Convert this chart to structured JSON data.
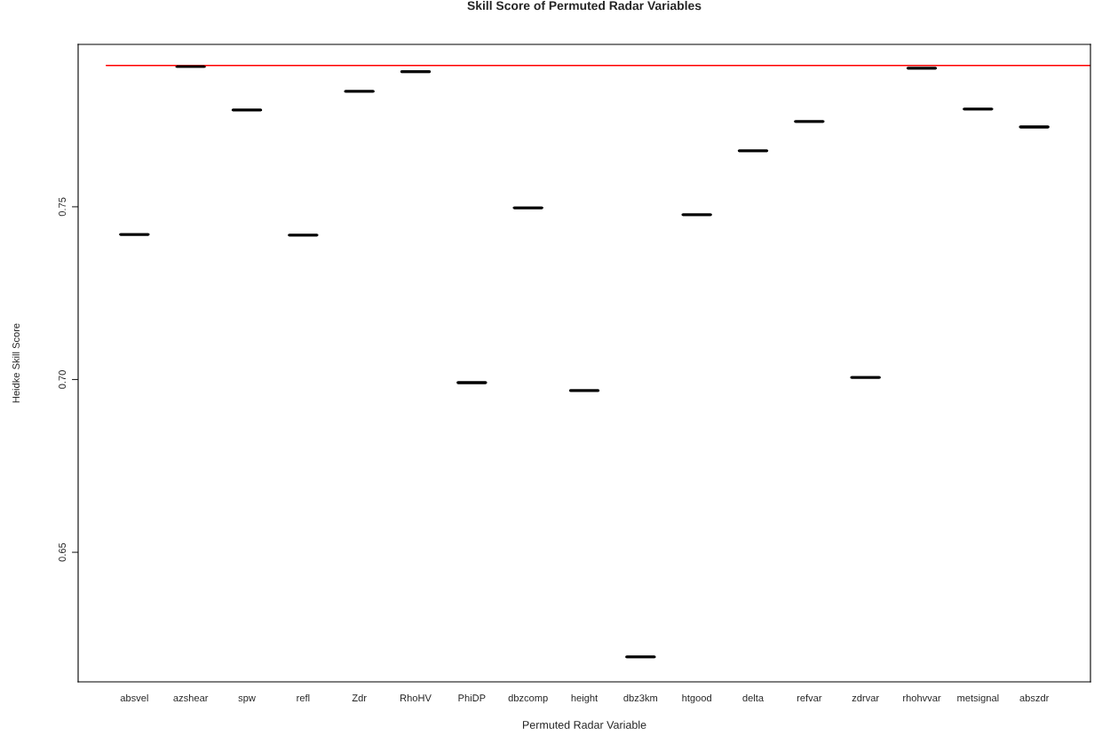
{
  "chart_data": {
    "type": "box",
    "title": "Skill Score of Permuted Radar Variables",
    "xlabel": "Permuted Radar Variable",
    "ylabel": "Heidke Skill Score",
    "categories": [
      "absvel",
      "azshear",
      "spw",
      "refl",
      "Zdr",
      "RhoHV",
      "PhiDP",
      "dbzcomp",
      "height",
      "dbz3km",
      "htgood",
      "delta",
      "refvar",
      "zdrvar",
      "rhohvvar",
      "metsignal",
      "abszdr"
    ],
    "boxes": [
      {
        "low": 0.742,
        "q1": 0.742,
        "median": 0.742,
        "q3": 0.742,
        "high": 0.742
      },
      {
        "low": 0.7906,
        "q1": 0.7906,
        "median": 0.7906,
        "q3": 0.7906,
        "high": 0.7906
      },
      {
        "low": 0.778,
        "q1": 0.778,
        "median": 0.778,
        "q3": 0.778,
        "high": 0.778
      },
      {
        "low": 0.7418,
        "q1": 0.7418,
        "median": 0.7418,
        "q3": 0.7418,
        "high": 0.7418
      },
      {
        "low": 0.7834,
        "q1": 0.7834,
        "median": 0.7834,
        "q3": 0.7834,
        "high": 0.7834
      },
      {
        "low": 0.7891,
        "q1": 0.7891,
        "median": 0.7891,
        "q3": 0.7891,
        "high": 0.7891
      },
      {
        "low": 0.6991,
        "q1": 0.6991,
        "median": 0.6991,
        "q3": 0.6991,
        "high": 0.6991
      },
      {
        "low": 0.7497,
        "q1": 0.7497,
        "median": 0.7497,
        "q3": 0.7497,
        "high": 0.7497
      },
      {
        "low": 0.6968,
        "q1": 0.6968,
        "median": 0.6968,
        "q3": 0.6968,
        "high": 0.6968
      },
      {
        "low": 0.6197,
        "q1": 0.6197,
        "median": 0.6197,
        "q3": 0.6197,
        "high": 0.6197
      },
      {
        "low": 0.7477,
        "q1": 0.7477,
        "median": 0.7477,
        "q3": 0.7477,
        "high": 0.7477
      },
      {
        "low": 0.7662,
        "q1": 0.7662,
        "median": 0.7662,
        "q3": 0.7662,
        "high": 0.7662
      },
      {
        "low": 0.7747,
        "q1": 0.7747,
        "median": 0.7747,
        "q3": 0.7747,
        "high": 0.7747
      },
      {
        "low": 0.7006,
        "q1": 0.7006,
        "median": 0.7006,
        "q3": 0.7006,
        "high": 0.7006
      },
      {
        "low": 0.7901,
        "q1": 0.7901,
        "median": 0.7901,
        "q3": 0.7901,
        "high": 0.7901
      },
      {
        "low": 0.7783,
        "q1": 0.7783,
        "median": 0.7783,
        "q3": 0.7783,
        "high": 0.7783
      },
      {
        "low": 0.7731,
        "q1": 0.7731,
        "median": 0.7731,
        "q3": 0.7731,
        "high": 0.7731
      }
    ],
    "ylim": [
      0.6125,
      0.797
    ],
    "yticks": [
      0.65,
      {
        "value": 0.7,
        "label": "0.70"
      },
      0.75
    ],
    "ref_lines": [
      {
        "axis": "y",
        "value": 0.7909,
        "color": "#ff0000"
      }
    ],
    "grid": false
  }
}
